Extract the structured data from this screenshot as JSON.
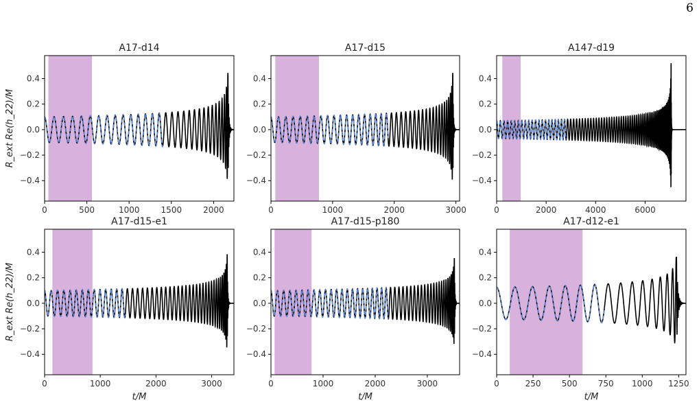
{
  "page_number": "6",
  "colors": {
    "numerical": "#000000",
    "model": "#5b86d6",
    "window": "#d8b2dc",
    "axes": "#000000"
  },
  "xlabel": "t/M",
  "ylabel": "R_ext Re(h_22)/M",
  "chart_data": [
    {
      "type": "line",
      "title": "A17-d14",
      "xlim": [
        0,
        2240
      ],
      "ylim": [
        -0.56,
        0.58
      ],
      "xticks": [
        0,
        500,
        1000,
        1500,
        2000
      ],
      "yticks": [
        -0.4,
        -0.2,
        0.0,
        0.2,
        0.4
      ],
      "shaded_window": [
        45,
        560
      ],
      "merger_time": 2170,
      "merger_peak": 0.39,
      "merger_trough": -0.44,
      "model_end": 1400,
      "ytick_labels_shown": true,
      "ylabel_shown": true,
      "xlabel_shown": false,
      "series": [
        {
          "kind": "numerical",
          "amplitude_start": 0.1,
          "cycles": 30
        },
        {
          "kind": "model",
          "amplitude_start": 0.1
        }
      ]
    },
    {
      "type": "line",
      "title": "A17-d15",
      "xlim": [
        0,
        3060
      ],
      "ylim": [
        -0.56,
        0.58
      ],
      "xticks": [
        0,
        1000,
        2000,
        3000
      ],
      "yticks": [
        -0.4,
        -0.2,
        0.0,
        0.2,
        0.4
      ],
      "shaded_window": [
        70,
        780
      ],
      "merger_time": 2950,
      "merger_peak": 0.44,
      "merger_trough": -0.4,
      "model_end": 1900,
      "ytick_labels_shown": true,
      "ylabel_shown": false,
      "xlabel_shown": false,
      "series": [
        {
          "kind": "numerical",
          "amplitude_start": 0.1,
          "cycles": 38
        },
        {
          "kind": "model",
          "amplitude_start": 0.1
        }
      ]
    },
    {
      "type": "line",
      "title": "A147-d19",
      "xlim": [
        0,
        7650
      ],
      "ylim": [
        -0.56,
        0.58
      ],
      "xticks": [
        0,
        2000,
        4000,
        6000
      ],
      "yticks": [
        -0.4,
        -0.2,
        0.0,
        0.2,
        0.4
      ],
      "shaded_window": [
        230,
        970
      ],
      "merger_time": 7050,
      "merger_peak": 0.52,
      "merger_trough": -0.5,
      "model_end": 2800,
      "ytick_labels_shown": true,
      "ylabel_shown": false,
      "xlabel_shown": false,
      "series": [
        {
          "kind": "numerical",
          "amplitude_start": 0.07,
          "cycles": 75
        },
        {
          "kind": "model",
          "amplitude_start": 0.07
        }
      ]
    },
    {
      "type": "line",
      "title": "A17-d15-e1",
      "xlim": [
        0,
        3400
      ],
      "ylim": [
        -0.56,
        0.58
      ],
      "xticks": [
        0,
        1000,
        2000,
        3000
      ],
      "yticks": [
        -0.4,
        -0.2,
        0.0,
        0.2,
        0.4
      ],
      "shaded_window": [
        140,
        860
      ],
      "merger_time": 3280,
      "merger_peak": 0.37,
      "merger_trough": -0.38,
      "model_end": 1450,
      "ytick_labels_shown": true,
      "ylabel_shown": true,
      "xlabel_shown": true,
      "series": [
        {
          "kind": "numerical",
          "amplitude_start": 0.1,
          "cycles": 44
        },
        {
          "kind": "model",
          "amplitude_start": 0.1
        }
      ]
    },
    {
      "type": "line",
      "title": "A17-d15-p180",
      "xlim": [
        0,
        3620
      ],
      "ylim": [
        -0.56,
        0.58
      ],
      "xticks": [
        0,
        1000,
        2000,
        3000
      ],
      "yticks": [
        -0.4,
        -0.2,
        0.0,
        0.2,
        0.4
      ],
      "shaded_window": [
        70,
        780
      ],
      "merger_time": 3520,
      "merger_peak": 0.35,
      "merger_trough": -0.33,
      "model_end": 2250,
      "ytick_labels_shown": true,
      "ylabel_shown": false,
      "xlabel_shown": true,
      "series": [
        {
          "kind": "numerical",
          "amplitude_start": 0.1,
          "cycles": 45
        },
        {
          "kind": "model",
          "amplitude_start": 0.1
        }
      ]
    },
    {
      "type": "line",
      "title": "A17-d12-e1",
      "xlim": [
        0,
        1300
      ],
      "ylim": [
        -0.56,
        0.58
      ],
      "xticks": [
        0,
        250,
        500,
        750,
        1000,
        1250
      ],
      "yticks": [
        -0.4,
        -0.2,
        0.0,
        0.2,
        0.4
      ],
      "shaded_window": [
        90,
        590
      ],
      "merger_time": 1235,
      "merger_peak": 0.36,
      "merger_trough": -0.27,
      "model_end": 740,
      "ytick_labels_shown": true,
      "ylabel_shown": false,
      "xlabel_shown": true,
      "series": [
        {
          "kind": "numerical",
          "amplitude_start": 0.125,
          "cycles": 15
        },
        {
          "kind": "model",
          "amplitude_start": 0.125
        }
      ]
    }
  ]
}
